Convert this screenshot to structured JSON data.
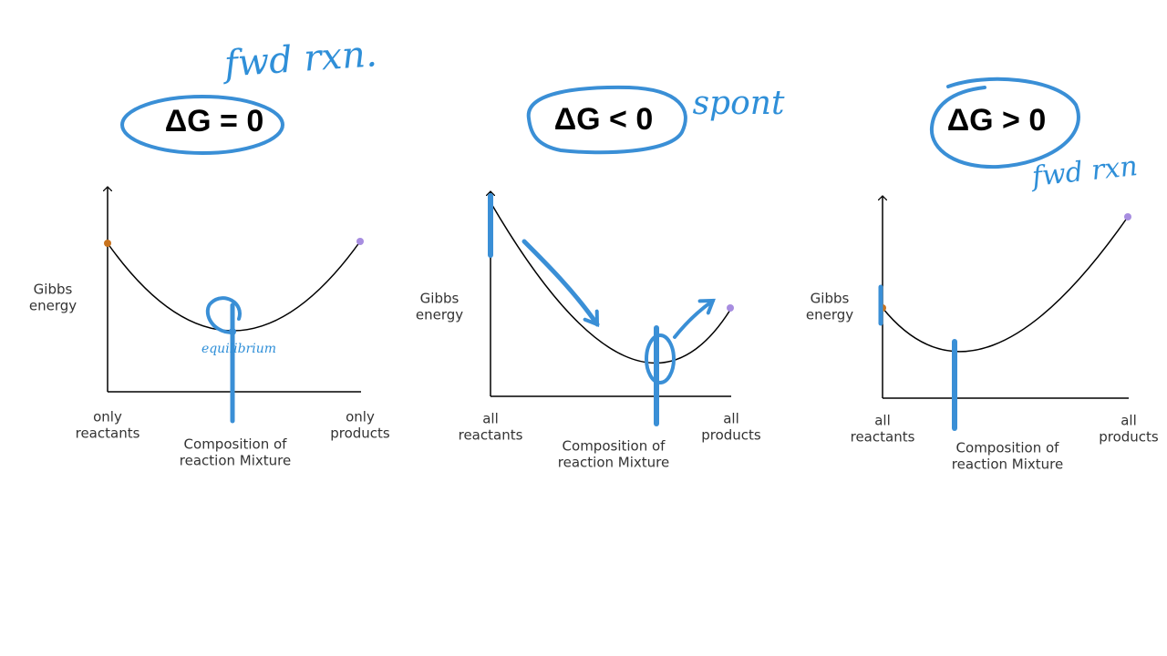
{
  "panels": [
    {
      "title": "ΔG = 0",
      "annotations": [
        "fwd rxn.",
        "equilibrium"
      ],
      "y_label": [
        "Gibbs",
        "energy"
      ],
      "x_left": [
        "only",
        "reactants"
      ],
      "x_right": [
        "only",
        "products"
      ],
      "x_label": [
        "Composition of",
        "reaction Mixture"
      ]
    },
    {
      "title": "ΔG < 0",
      "annotations": [
        "spont"
      ],
      "y_label": [
        "Gibbs",
        "energy"
      ],
      "x_left": [
        "all",
        "reactants"
      ],
      "x_right": [
        "all",
        "products"
      ],
      "x_label": [
        "Composition of",
        "reaction Mixture"
      ]
    },
    {
      "title": "ΔG > 0",
      "annotations": [
        "fwd rxn"
      ],
      "y_label": [
        "Gibbs",
        "energy"
      ],
      "x_left": [
        "all",
        "reactants"
      ],
      "x_right": [
        "all",
        "products"
      ],
      "x_label": [
        "Composition of",
        "reaction Mixture"
      ]
    }
  ]
}
